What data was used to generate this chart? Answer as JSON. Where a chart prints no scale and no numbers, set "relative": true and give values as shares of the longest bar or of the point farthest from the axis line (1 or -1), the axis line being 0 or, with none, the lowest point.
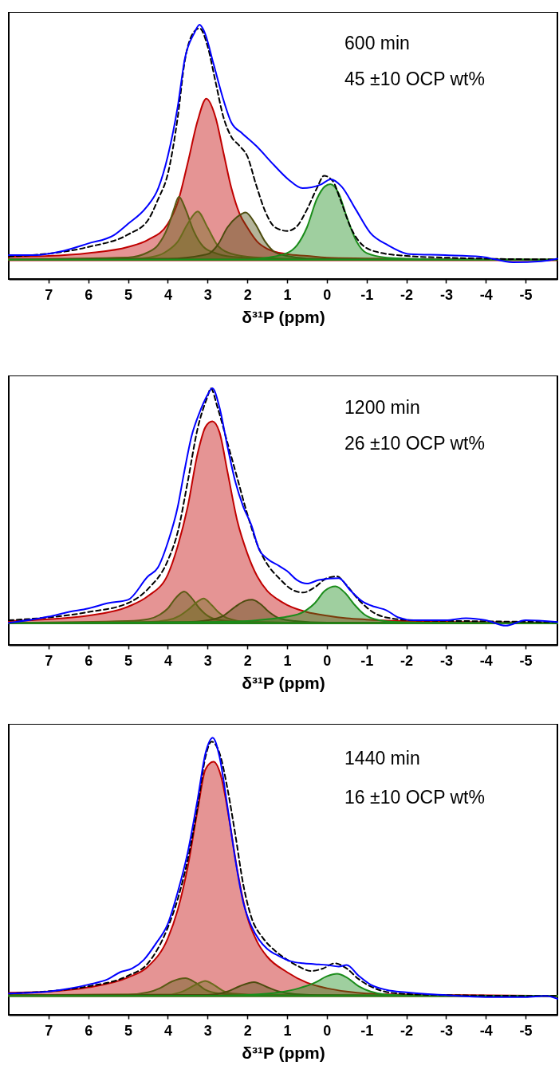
{
  "chart_data": [
    {
      "type": "line",
      "relative": true,
      "xlabel": "δ³¹P (ppm)",
      "xlim": [
        8,
        -5.8
      ],
      "xticks": [
        7,
        6,
        5,
        4,
        3,
        2,
        1,
        0,
        -1,
        -2,
        -3,
        -4,
        -5
      ],
      "annotations": [
        "600 min",
        "45 ±10 OCP wt%"
      ],
      "series": [
        {
          "type": "area",
          "color": "#c00000",
          "x": [
            8.0,
            7.0,
            6.0,
            5.0,
            4.5,
            4.0,
            3.75,
            3.5,
            3.25,
            3.03,
            2.8,
            2.6,
            2.4,
            2.2,
            2.0,
            1.75,
            1.5,
            1.0,
            0.5,
            0,
            -1.0,
            -3.0,
            -5.8
          ],
          "values": [
            0.088,
            0.091,
            0.102,
            0.126,
            0.154,
            0.217,
            0.301,
            0.455,
            0.622,
            0.709,
            0.636,
            0.497,
            0.357,
            0.259,
            0.203,
            0.147,
            0.119,
            0.098,
            0.091,
            0.084,
            0.081,
            0.077,
            0.074
          ]
        },
        {
          "type": "area",
          "color": "#5a5a14",
          "x": [
            8.0,
            5.0,
            4.5,
            4.25,
            4.0,
            3.85,
            3.72,
            3.55,
            3.35,
            3.1,
            2.8,
            2.4,
            1.5,
            0,
            -5.8
          ],
          "values": [
            0.078,
            0.085,
            0.105,
            0.133,
            0.203,
            0.273,
            0.324,
            0.273,
            0.189,
            0.126,
            0.102,
            0.088,
            0.08,
            0.077,
            0.076
          ]
        },
        {
          "type": "area",
          "color": "#6b6b1c",
          "x": [
            8.0,
            5.0,
            4.3,
            4.0,
            3.75,
            3.5,
            3.25,
            3.0,
            2.75,
            2.5,
            2.0,
            1.0,
            0,
            -5.8
          ],
          "values": [
            0.077,
            0.078,
            0.09,
            0.112,
            0.147,
            0.217,
            0.266,
            0.203,
            0.133,
            0.105,
            0.088,
            0.08,
            0.077,
            0.076
          ]
        },
        {
          "type": "area",
          "color": "#4c4c0e",
          "x": [
            8.0,
            4.0,
            3.0,
            2.75,
            2.5,
            2.25,
            2.04,
            1.8,
            1.55,
            1.3,
            1.0,
            0.5,
            -1.0,
            -5.8
          ],
          "values": [
            0.077,
            0.08,
            0.098,
            0.133,
            0.203,
            0.245,
            0.262,
            0.217,
            0.147,
            0.105,
            0.091,
            0.081,
            0.077,
            0.076
          ]
        },
        {
          "type": "area",
          "color": "#1a8c1a",
          "x": [
            8.0,
            2.0,
            1.5,
            1.0,
            0.75,
            0.5,
            0.25,
            0.05,
            -0.09,
            -0.3,
            -0.5,
            -0.75,
            -1.0,
            -1.5,
            -2.0,
            -3.0,
            -5.8
          ],
          "values": [
            0.076,
            0.077,
            0.084,
            0.102,
            0.133,
            0.203,
            0.315,
            0.364,
            0.373,
            0.336,
            0.245,
            0.147,
            0.102,
            0.084,
            0.08,
            0.077,
            0.076
          ]
        },
        {
          "type": "line",
          "color": "#000000",
          "line_style": "dashed",
          "x": [
            8.0,
            6.0,
            5.0,
            4.5,
            4.24,
            4.0,
            3.75,
            3.57,
            3.3,
            3.2,
            3.0,
            2.8,
            2.6,
            2.4,
            2.2,
            2.0,
            1.78,
            1.55,
            1.3,
            1.0,
            0.78,
            0.5,
            0.25,
            0.07,
            -0.15,
            -0.35,
            -0.6,
            -0.9,
            -1.3,
            -2.0,
            -3.0,
            -4.0,
            -5.8
          ],
          "values": [
            0.088,
            0.126,
            0.175,
            0.231,
            0.315,
            0.413,
            0.636,
            0.86,
            0.979,
            0.986,
            0.916,
            0.776,
            0.636,
            0.559,
            0.524,
            0.483,
            0.371,
            0.266,
            0.203,
            0.189,
            0.203,
            0.273,
            0.357,
            0.406,
            0.385,
            0.308,
            0.203,
            0.133,
            0.105,
            0.091,
            0.084,
            0.08,
            0.077
          ]
        },
        {
          "type": "line",
          "color": "#0000ff",
          "x": [
            8.0,
            7.33,
            6.7,
            6.0,
            5.36,
            5.0,
            4.55,
            4.24,
            4.0,
            3.75,
            3.57,
            3.34,
            3.2,
            3.08,
            2.85,
            2.63,
            2.4,
            2.13,
            1.78,
            1.33,
            0.97,
            0.61,
            0.16,
            -0.1,
            -0.37,
            -0.73,
            -1.09,
            -1.54,
            -2.08,
            -2.97,
            -3.87,
            -4.68,
            -5.4,
            -5.8
          ],
          "values": [
            0.094,
            0.094,
            0.108,
            0.14,
            0.172,
            0.217,
            0.28,
            0.357,
            0.483,
            0.678,
            0.867,
            0.965,
            1.0,
            0.972,
            0.846,
            0.72,
            0.615,
            0.573,
            0.524,
            0.448,
            0.392,
            0.357,
            0.371,
            0.392,
            0.364,
            0.273,
            0.182,
            0.133,
            0.098,
            0.094,
            0.088,
            0.066,
            0.07,
            0.08
          ]
        }
      ]
    },
    {
      "type": "line",
      "relative": true,
      "xlabel": "δ³¹P (ppm)",
      "xlim": [
        8,
        -5.8
      ],
      "xticks": [
        7,
        6,
        5,
        4,
        3,
        2,
        1,
        0,
        -1,
        -2,
        -3,
        -4,
        -5
      ],
      "annotations": [
        "1200 min",
        "26 ±10 OCP wt%"
      ],
      "series": [
        {
          "type": "area",
          "color": "#c00000",
          "x": [
            8.0,
            7.0,
            6.0,
            5.0,
            4.5,
            4.0,
            3.75,
            3.5,
            3.25,
            3.05,
            2.88,
            2.7,
            2.5,
            2.25,
            2.0,
            1.75,
            1.5,
            1.25,
            1.0,
            0.5,
            0,
            -0.5,
            -1.0,
            -2.0,
            -3.5,
            -5.8
          ],
          "values": [
            0.093,
            0.1,
            0.114,
            0.149,
            0.19,
            0.274,
            0.385,
            0.538,
            0.746,
            0.85,
            0.871,
            0.829,
            0.676,
            0.482,
            0.357,
            0.267,
            0.211,
            0.179,
            0.156,
            0.128,
            0.114,
            0.104,
            0.099,
            0.093,
            0.089,
            0.086
          ]
        },
        {
          "type": "area",
          "color": "#5a5a14",
          "x": [
            8.0,
            5.0,
            4.5,
            4.2,
            4.0,
            3.8,
            3.59,
            3.4,
            3.2,
            3.0,
            2.7,
            2.0,
            0,
            -5.8
          ],
          "values": [
            0.086,
            0.093,
            0.1,
            0.118,
            0.142,
            0.183,
            0.208,
            0.183,
            0.142,
            0.114,
            0.097,
            0.089,
            0.086,
            0.085
          ]
        },
        {
          "type": "area",
          "color": "#6b6b1c",
          "x": [
            8.0,
            4.5,
            4.0,
            3.7,
            3.45,
            3.25,
            3.1,
            2.9,
            2.7,
            2.5,
            2.0,
            0,
            -5.8
          ],
          "values": [
            0.085,
            0.089,
            0.097,
            0.114,
            0.142,
            0.169,
            0.181,
            0.156,
            0.124,
            0.104,
            0.09,
            0.086,
            0.085
          ]
        },
        {
          "type": "area",
          "color": "#4c4c0e",
          "x": [
            8.0,
            3.5,
            3.0,
            2.6,
            2.3,
            2.05,
            1.88,
            1.7,
            1.45,
            1.2,
            0.8,
            0,
            -5.8
          ],
          "values": [
            0.085,
            0.089,
            0.096,
            0.114,
            0.149,
            0.172,
            0.176,
            0.163,
            0.128,
            0.104,
            0.093,
            0.087,
            0.085
          ]
        },
        {
          "type": "area",
          "color": "#1a8c1a",
          "x": [
            8.0,
            3.0,
            2.0,
            1.5,
            1.0,
            0.6,
            0.3,
            0.05,
            -0.22,
            -0.45,
            -0.7,
            -0.95,
            -1.3,
            -1.8,
            -3.0,
            -5.8
          ],
          "values": [
            0.085,
            0.089,
            0.093,
            0.1,
            0.11,
            0.128,
            0.163,
            0.211,
            0.228,
            0.204,
            0.156,
            0.118,
            0.097,
            0.089,
            0.086,
            0.085
          ]
        },
        {
          "type": "line",
          "color": "#000000",
          "line_style": "dashed",
          "x": [
            8.0,
            6.0,
            5.0,
            4.5,
            4.0,
            3.75,
            3.5,
            3.25,
            3.0,
            2.92,
            2.75,
            2.5,
            2.25,
            2.0,
            1.75,
            1.5,
            1.2,
            0.9,
            0.6,
            0.3,
            0.0,
            -0.25,
            -0.5,
            -0.8,
            -1.2,
            -1.6,
            -2.2,
            -3.5,
            -5.8
          ],
          "values": [
            0.096,
            0.128,
            0.163,
            0.218,
            0.329,
            0.44,
            0.635,
            0.843,
            0.968,
            1.0,
            0.926,
            0.788,
            0.649,
            0.51,
            0.392,
            0.315,
            0.26,
            0.218,
            0.204,
            0.225,
            0.26,
            0.267,
            0.232,
            0.176,
            0.124,
            0.104,
            0.096,
            0.093,
            0.089
          ]
        },
        {
          "type": "line",
          "color": "#0000ff",
          "x": [
            8.0,
            7.0,
            6.5,
            6.0,
            5.5,
            5.0,
            4.5,
            4.25,
            4.0,
            3.75,
            3.6,
            3.4,
            3.2,
            3.0,
            2.88,
            2.7,
            2.5,
            2.3,
            2.1,
            1.9,
            1.7,
            1.5,
            1.2,
            1.0,
            0.75,
            0.5,
            0.2,
            -0.3,
            -0.6,
            -0.9,
            -1.2,
            -1.5,
            -1.8,
            -2.2,
            -3.0,
            -3.5,
            -4.0,
            -4.5,
            -5.0,
            -5.8
          ],
          "values": [
            0.086,
            0.11,
            0.128,
            0.142,
            0.163,
            0.176,
            0.267,
            0.301,
            0.399,
            0.538,
            0.663,
            0.815,
            0.906,
            0.975,
            1.0,
            0.926,
            0.774,
            0.635,
            0.538,
            0.468,
            0.371,
            0.336,
            0.308,
            0.288,
            0.253,
            0.239,
            0.253,
            0.26,
            0.211,
            0.169,
            0.149,
            0.135,
            0.107,
            0.096,
            0.096,
            0.104,
            0.096,
            0.075,
            0.096,
            0.089
          ]
        }
      ]
    },
    {
      "type": "line",
      "relative": true,
      "xlabel": "δ³¹P (ppm)",
      "xlim": [
        8,
        -5.8
      ],
      "xticks": [
        7,
        6,
        5,
        4,
        3,
        2,
        1,
        0,
        -1,
        -2,
        -3,
        -4,
        -5
      ],
      "annotations": [
        "1440 min",
        " 16 ±10 OCP wt%"
      ],
      "series": [
        {
          "type": "area",
          "color": "#c00000",
          "x": [
            8.0,
            7.0,
            6.0,
            5.0,
            4.5,
            4.0,
            3.75,
            3.5,
            3.25,
            3.05,
            2.85,
            2.65,
            2.45,
            2.25,
            2.0,
            1.75,
            1.5,
            1.0,
            0.5,
            0,
            -0.5,
            -1.0,
            -2.0,
            -3.5,
            -5.8
          ],
          "values": [
            0.08,
            0.084,
            0.099,
            0.135,
            0.174,
            0.276,
            0.379,
            0.533,
            0.739,
            0.887,
            0.913,
            0.855,
            0.7,
            0.521,
            0.353,
            0.263,
            0.21,
            0.154,
            0.116,
            0.096,
            0.084,
            0.077,
            0.073,
            0.071,
            0.068
          ]
        },
        {
          "type": "area",
          "color": "#5a5a14",
          "x": [
            8.0,
            5.0,
            4.5,
            4.2,
            3.9,
            3.56,
            3.3,
            3.05,
            2.7,
            2.0,
            -5.8
          ],
          "values": [
            0.071,
            0.073,
            0.081,
            0.096,
            0.12,
            0.132,
            0.116,
            0.09,
            0.077,
            0.071,
            0.068
          ]
        },
        {
          "type": "area",
          "color": "#6b6b1c",
          "x": [
            8.0,
            4.0,
            3.6,
            3.3,
            3.06,
            2.85,
            2.6,
            2.3,
            1.5,
            -5.8
          ],
          "values": [
            0.071,
            0.073,
            0.086,
            0.109,
            0.122,
            0.109,
            0.086,
            0.076,
            0.071,
            0.068
          ]
        },
        {
          "type": "area",
          "color": "#4c4c0e",
          "x": [
            8.0,
            3.0,
            2.5,
            2.2,
            1.83,
            1.5,
            1.2,
            0.8,
            0,
            -5.8
          ],
          "values": [
            0.071,
            0.072,
            0.084,
            0.103,
            0.118,
            0.1,
            0.084,
            0.075,
            0.071,
            0.068
          ]
        },
        {
          "type": "area",
          "color": "#1a8c1a",
          "x": [
            8.0,
            3.0,
            2.0,
            1.2,
            0.7,
            0.3,
            0,
            -0.26,
            -0.5,
            -0.8,
            -1.1,
            -1.5,
            -2.5,
            -5.8
          ],
          "values": [
            0.068,
            0.069,
            0.072,
            0.081,
            0.096,
            0.116,
            0.139,
            0.148,
            0.135,
            0.103,
            0.084,
            0.073,
            0.069,
            0.068
          ]
        },
        {
          "type": "line",
          "color": "#000000",
          "line_style": "dashed",
          "x": [
            8.0,
            6.0,
            5.0,
            4.5,
            4.0,
            3.75,
            3.5,
            3.25,
            3.05,
            2.9,
            2.7,
            2.5,
            2.3,
            2.1,
            1.9,
            1.6,
            1.3,
            1.0,
            0.7,
            0.4,
            0.1,
            -0.2,
            -0.5,
            -0.8,
            -1.2,
            -1.8,
            -3.0,
            -5.8
          ],
          "values": [
            0.077,
            0.103,
            0.141,
            0.186,
            0.315,
            0.418,
            0.559,
            0.752,
            0.932,
            0.986,
            0.945,
            0.817,
            0.649,
            0.469,
            0.353,
            0.276,
            0.231,
            0.199,
            0.174,
            0.158,
            0.167,
            0.186,
            0.167,
            0.129,
            0.096,
            0.077,
            0.071,
            0.068
          ]
        },
        {
          "type": "line",
          "color": "#0000ff",
          "x": [
            8.0,
            7.0,
            6.5,
            6.0,
            5.5,
            5.2,
            4.9,
            4.6,
            4.3,
            4.0,
            3.75,
            3.5,
            3.25,
            3.05,
            2.87,
            2.7,
            2.5,
            2.3,
            2.1,
            1.9,
            1.7,
            1.5,
            1.2,
            0.9,
            0.6,
            0.3,
            0.0,
            -0.3,
            -0.5,
            -0.8,
            -1.1,
            -1.5,
            -2.0,
            -3.0,
            -4.0,
            -5.0,
            -5.5,
            -5.8
          ],
          "values": [
            0.077,
            0.084,
            0.094,
            0.109,
            0.129,
            0.154,
            0.167,
            0.199,
            0.257,
            0.328,
            0.443,
            0.585,
            0.778,
            0.945,
            1.0,
            0.932,
            0.752,
            0.559,
            0.405,
            0.321,
            0.27,
            0.238,
            0.212,
            0.193,
            0.186,
            0.183,
            0.18,
            0.174,
            0.18,
            0.141,
            0.109,
            0.09,
            0.081,
            0.071,
            0.064,
            0.064,
            0.068,
            0.058
          ]
        }
      ]
    }
  ]
}
